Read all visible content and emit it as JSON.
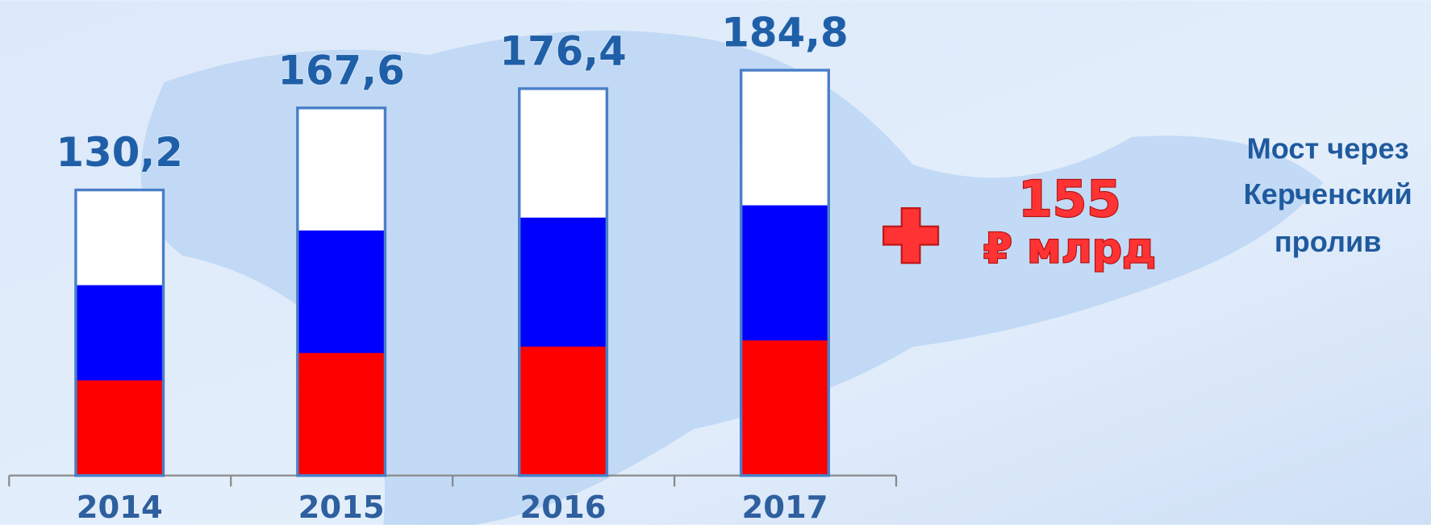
{
  "chart_data": {
    "type": "bar",
    "categories": [
      "2014",
      "2015",
      "2016",
      "2017"
    ],
    "values": [
      130.2,
      167.6,
      176.4,
      184.8
    ],
    "value_labels": [
      "130,2",
      "167,6",
      "176,4",
      "184,8"
    ],
    "colors": [
      "#ffffff",
      "#0000ff",
      "#ff0000"
    ],
    "annotation": {
      "amount": "155",
      "unit": "₽ млрд"
    },
    "note": [
      "Мост через",
      "Керченский",
      "пролив"
    ]
  }
}
